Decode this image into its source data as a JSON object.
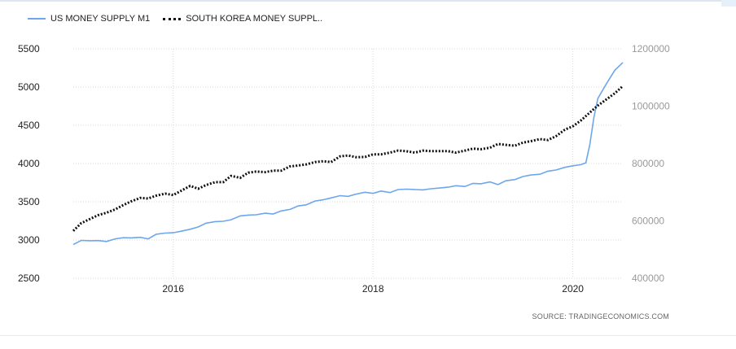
{
  "legend": {
    "us_label": "US MONEY SUPPLY M1",
    "kr_label": "SOUTH  KOREA  MONEY  SUPPL.."
  },
  "source": "SOURCE:  TRADINGECONOMICS.COM",
  "chart_data": {
    "type": "line",
    "x_axis": {
      "ticks": [
        2016,
        2018,
        2020
      ],
      "range": [
        2015.0,
        2020.5
      ]
    },
    "y_left": {
      "ticks": [
        2500,
        3000,
        3500,
        4000,
        4500,
        5000,
        5500
      ],
      "range": [
        2500,
        5500
      ]
    },
    "y_right": {
      "ticks": [
        400000,
        600000,
        800000,
        1000000,
        1200000
      ],
      "range": [
        400000,
        1200000
      ]
    },
    "grid": true,
    "legend_position": "top-left",
    "colors": {
      "us": "#6ea6ee",
      "kr": "#111111"
    },
    "series": [
      {
        "name": "US MONEY SUPPLY M1",
        "axis": "left",
        "points": [
          [
            2015.0,
            2940
          ],
          [
            2015.08,
            2995
          ],
          [
            2015.17,
            2990
          ],
          [
            2015.25,
            2993
          ],
          [
            2015.33,
            2980
          ],
          [
            2015.42,
            3015
          ],
          [
            2015.5,
            3030
          ],
          [
            2015.58,
            3028
          ],
          [
            2015.67,
            3035
          ],
          [
            2015.75,
            3015
          ],
          [
            2015.83,
            3075
          ],
          [
            2015.92,
            3090
          ],
          [
            2016.0,
            3095
          ],
          [
            2016.08,
            3115
          ],
          [
            2016.17,
            3140
          ],
          [
            2016.25,
            3170
          ],
          [
            2016.33,
            3220
          ],
          [
            2016.42,
            3240
          ],
          [
            2016.5,
            3245
          ],
          [
            2016.58,
            3265
          ],
          [
            2016.67,
            3315
          ],
          [
            2016.75,
            3325
          ],
          [
            2016.83,
            3330
          ],
          [
            2016.92,
            3350
          ],
          [
            2017.0,
            3340
          ],
          [
            2017.08,
            3380
          ],
          [
            2017.17,
            3400
          ],
          [
            2017.25,
            3445
          ],
          [
            2017.33,
            3460
          ],
          [
            2017.42,
            3510
          ],
          [
            2017.5,
            3525
          ],
          [
            2017.58,
            3550
          ],
          [
            2017.67,
            3580
          ],
          [
            2017.75,
            3570
          ],
          [
            2017.83,
            3600
          ],
          [
            2017.92,
            3625
          ],
          [
            2018.0,
            3610
          ],
          [
            2018.08,
            3640
          ],
          [
            2018.17,
            3620
          ],
          [
            2018.25,
            3660
          ],
          [
            2018.33,
            3665
          ],
          [
            2018.42,
            3660
          ],
          [
            2018.5,
            3655
          ],
          [
            2018.58,
            3670
          ],
          [
            2018.67,
            3680
          ],
          [
            2018.75,
            3690
          ],
          [
            2018.83,
            3710
          ],
          [
            2018.92,
            3700
          ],
          [
            2019.0,
            3740
          ],
          [
            2019.08,
            3735
          ],
          [
            2019.17,
            3760
          ],
          [
            2019.25,
            3725
          ],
          [
            2019.33,
            3775
          ],
          [
            2019.42,
            3790
          ],
          [
            2019.5,
            3830
          ],
          [
            2019.58,
            3850
          ],
          [
            2019.67,
            3860
          ],
          [
            2019.75,
            3900
          ],
          [
            2019.83,
            3915
          ],
          [
            2019.92,
            3950
          ],
          [
            2020.0,
            3970
          ],
          [
            2020.08,
            3985
          ],
          [
            2020.13,
            4010
          ],
          [
            2020.17,
            4250
          ],
          [
            2020.21,
            4600
          ],
          [
            2020.25,
            4850
          ],
          [
            2020.33,
            5030
          ],
          [
            2020.42,
            5220
          ],
          [
            2020.5,
            5320
          ]
        ]
      },
      {
        "name": "SOUTH  KOREA  MONEY  SUPPL..",
        "axis": "right",
        "points": [
          [
            2015.0,
            565000
          ],
          [
            2015.08,
            592000
          ],
          [
            2015.17,
            607000
          ],
          [
            2015.25,
            620000
          ],
          [
            2015.33,
            628000
          ],
          [
            2015.42,
            640000
          ],
          [
            2015.5,
            655000
          ],
          [
            2015.58,
            668000
          ],
          [
            2015.67,
            680000
          ],
          [
            2015.75,
            678000
          ],
          [
            2015.83,
            688000
          ],
          [
            2015.92,
            695000
          ],
          [
            2016.0,
            690000
          ],
          [
            2016.08,
            705000
          ],
          [
            2016.17,
            722000
          ],
          [
            2016.25,
            712000
          ],
          [
            2016.33,
            725000
          ],
          [
            2016.42,
            735000
          ],
          [
            2016.5,
            735000
          ],
          [
            2016.58,
            757000
          ],
          [
            2016.67,
            750000
          ],
          [
            2016.75,
            768000
          ],
          [
            2016.83,
            772000
          ],
          [
            2016.92,
            770000
          ],
          [
            2017.0,
            775000
          ],
          [
            2017.08,
            775000
          ],
          [
            2017.17,
            790000
          ],
          [
            2017.25,
            793000
          ],
          [
            2017.33,
            797000
          ],
          [
            2017.42,
            805000
          ],
          [
            2017.5,
            808000
          ],
          [
            2017.58,
            805000
          ],
          [
            2017.67,
            825000
          ],
          [
            2017.75,
            828000
          ],
          [
            2017.83,
            822000
          ],
          [
            2017.92,
            823000
          ],
          [
            2018.0,
            832000
          ],
          [
            2018.08,
            832000
          ],
          [
            2018.17,
            838000
          ],
          [
            2018.25,
            845000
          ],
          [
            2018.33,
            843000
          ],
          [
            2018.42,
            838000
          ],
          [
            2018.5,
            845000
          ],
          [
            2018.58,
            843000
          ],
          [
            2018.67,
            843000
          ],
          [
            2018.75,
            843000
          ],
          [
            2018.83,
            838000
          ],
          [
            2018.92,
            845000
          ],
          [
            2019.0,
            852000
          ],
          [
            2019.08,
            850000
          ],
          [
            2019.17,
            855000
          ],
          [
            2019.25,
            868000
          ],
          [
            2019.33,
            865000
          ],
          [
            2019.42,
            862000
          ],
          [
            2019.5,
            873000
          ],
          [
            2019.58,
            878000
          ],
          [
            2019.67,
            885000
          ],
          [
            2019.75,
            882000
          ],
          [
            2019.83,
            895000
          ],
          [
            2019.92,
            918000
          ],
          [
            2020.0,
            930000
          ],
          [
            2020.08,
            950000
          ],
          [
            2020.17,
            978000
          ],
          [
            2020.25,
            1002000
          ],
          [
            2020.33,
            1022000
          ],
          [
            2020.42,
            1045000
          ],
          [
            2020.5,
            1070000
          ]
        ]
      }
    ]
  }
}
